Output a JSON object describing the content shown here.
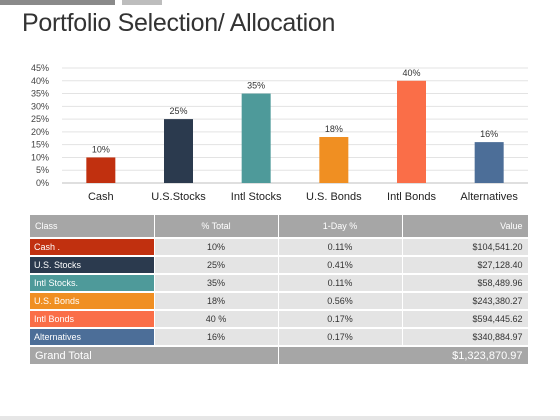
{
  "title": "Portfolio Selection/ Allocation",
  "chart_data": {
    "type": "bar",
    "title": "",
    "xlabel": "",
    "ylabel": "",
    "categories": [
      "Cash",
      "U.S.Stocks",
      "Intl Stocks",
      "U.S. Bonds",
      "Intl Bonds",
      "Alternatives"
    ],
    "values": [
      10,
      25,
      35,
      18,
      40,
      16
    ],
    "data_labels": [
      "10%",
      "25%",
      "35%",
      "18%",
      "40%",
      "16%"
    ],
    "colors": [
      "#c1300f",
      "#2b3a4e",
      "#4e9a9a",
      "#f08f22",
      "#fa6e48",
      "#4c6e98"
    ],
    "ylim": [
      0,
      45
    ],
    "yticks": [
      0,
      5,
      10,
      15,
      20,
      25,
      30,
      35,
      40,
      45
    ],
    "ytick_labels": [
      "0%",
      "5%",
      "10%",
      "15%",
      "20%",
      "25%",
      "30%",
      "35%",
      "40%",
      "45%"
    ],
    "grid": true,
    "legend": "none"
  },
  "table": {
    "headers": [
      "Class",
      "% Total",
      "1-Day %",
      "Value"
    ],
    "rows": [
      {
        "class": "Cash .",
        "total": "10%",
        "day": "0.11%",
        "value": "$104,541.20",
        "color": "#c1300f"
      },
      {
        "class": "U.S. Stocks",
        "total": "25%",
        "day": "0.41%",
        "value": "$27,128.40",
        "color": "#2b3a4e"
      },
      {
        "class": "Intl Stocks.",
        "total": "35%",
        "day": "0.11%",
        "value": "$58,489.96",
        "color": "#4e9a9a"
      },
      {
        "class": "U.S. Bonds",
        "total": "18%",
        "day": "0.56%",
        "value": "$243,380.27",
        "color": "#f08f22"
      },
      {
        "class": "Intl Bonds",
        "total": "40 %",
        "day": "0.17%",
        "value": "$594,445.62",
        "color": "#fa6e48"
      },
      {
        "class": "Alternatives",
        "total": "16%",
        "day": "0.17%",
        "value": "$340,884.97",
        "color": "#4c6e98"
      }
    ],
    "grand_total_label": "Grand Total",
    "grand_total_value": "$1,323,870.97"
  }
}
